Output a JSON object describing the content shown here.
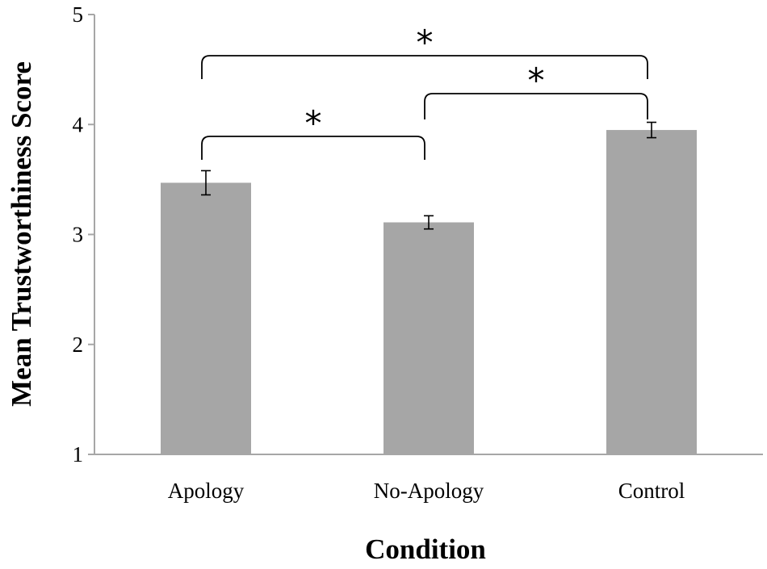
{
  "chart_data": {
    "type": "bar",
    "categories": [
      "Apology",
      "No-Apology",
      "Control"
    ],
    "values": [
      3.47,
      3.11,
      3.95
    ],
    "errors": [
      0.11,
      0.06,
      0.07
    ],
    "xlabel": "Condition",
    "ylabel": "Mean Trustworthiness Score",
    "ylim": [
      1,
      5
    ],
    "yticks": [
      "1",
      "2",
      "3",
      "4",
      "5"
    ],
    "bar_color": "#a6a6a6",
    "axis_color": "#a6a6a6",
    "grid": false,
    "significance": [
      {
        "from": "Apology",
        "to": "No-Apology",
        "label": "*"
      },
      {
        "from": "No-Apology",
        "to": "Control",
        "label": "*"
      },
      {
        "from": "Apology",
        "to": "Control",
        "label": "*"
      }
    ]
  }
}
